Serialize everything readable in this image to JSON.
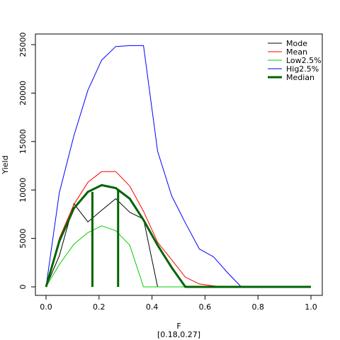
{
  "chart_data": {
    "type": "line",
    "title": "",
    "xlabel": "F",
    "subtitle": "[0.18,0.27]",
    "ylabel": "Yield",
    "xlim": [
      0,
      1
    ],
    "ylim": [
      0,
      25000
    ],
    "x_ticks": [
      "0.0",
      "0.2",
      "0.4",
      "0.6",
      "0.8",
      "1.0"
    ],
    "x_tick_values": [
      0,
      0.2,
      0.4,
      0.6,
      0.8,
      1.0
    ],
    "y_ticks": [
      "0",
      "5000",
      "10000",
      "15000",
      "20000",
      "25000"
    ],
    "y_tick_values": [
      0,
      5000,
      10000,
      15000,
      20000,
      25000
    ],
    "grid": false,
    "legend_position": "top-right",
    "series": [
      {
        "name": "Mode",
        "color": "#000000",
        "x": [
          0,
          0.05,
          0.105,
          0.158,
          0.21,
          0.263,
          0.316,
          0.368,
          0.421,
          0.474,
          0.526,
          0.579,
          0.632,
          0.684,
          0.737,
          0.789,
          0.842,
          0.895,
          0.947,
          1.0
        ],
        "y": [
          0,
          3200,
          8600,
          6700,
          7900,
          9100,
          7700,
          7000,
          0,
          0,
          0,
          0,
          0,
          0,
          0,
          0,
          0,
          0,
          0,
          0
        ]
      },
      {
        "name": "Mean",
        "color": "#ff0000",
        "x": [
          0,
          0.05,
          0.105,
          0.158,
          0.21,
          0.263,
          0.316,
          0.368,
          0.421,
          0.474,
          0.526,
          0.579,
          0.632,
          0.684,
          0.737,
          0.789,
          0.842,
          0.895,
          0.947,
          1.0
        ],
        "y": [
          0,
          5000,
          8500,
          10800,
          11900,
          11900,
          10400,
          7800,
          4600,
          2800,
          1000,
          300,
          100,
          0,
          0,
          0,
          0,
          0,
          0,
          0
        ]
      },
      {
        "name": "Low2.5%",
        "color": "#00cc00",
        "x": [
          0,
          0.05,
          0.105,
          0.158,
          0.21,
          0.263,
          0.316,
          0.368,
          0.421,
          0.474,
          0.526,
          0.579,
          0.632,
          0.684,
          0.737,
          0.789,
          0.842,
          0.895,
          0.947,
          1.0
        ],
        "y": [
          0,
          2300,
          4400,
          5600,
          6300,
          5800,
          4300,
          0,
          0,
          0,
          0,
          0,
          0,
          0,
          0,
          0,
          0,
          0,
          0,
          0
        ]
      },
      {
        "name": "Hig2.5%",
        "color": "#0000ff",
        "x": [
          0,
          0.05,
          0.105,
          0.158,
          0.21,
          0.263,
          0.316,
          0.368,
          0.421,
          0.474,
          0.526,
          0.579,
          0.632,
          0.684,
          0.737,
          0.789,
          0.842,
          0.895,
          0.947,
          1.0
        ],
        "y": [
          0,
          9700,
          15600,
          20300,
          23400,
          24800,
          24900,
          24900,
          14000,
          9400,
          6600,
          3900,
          3100,
          1500,
          0,
          0,
          0,
          0,
          0,
          0
        ]
      },
      {
        "name": "Median",
        "color": "#006400",
        "x": [
          0,
          0.05,
          0.105,
          0.158,
          0.21,
          0.263,
          0.316,
          0.368,
          0.421,
          0.474,
          0.526,
          0.579,
          0.632,
          0.684,
          0.737,
          0.789,
          0.842,
          0.895,
          0.947,
          1.0
        ],
        "y": [
          0,
          4700,
          8100,
          9800,
          10500,
          10200,
          9100,
          6900,
          4300,
          2000,
          0,
          0,
          0,
          0,
          0,
          0,
          0,
          0,
          0,
          0
        ]
      }
    ],
    "vertical_markers": [
      {
        "x": 0.175,
        "y": 9800,
        "color": "#006400"
      },
      {
        "x": 0.272,
        "y": 10050,
        "color": "#006400"
      }
    ]
  }
}
